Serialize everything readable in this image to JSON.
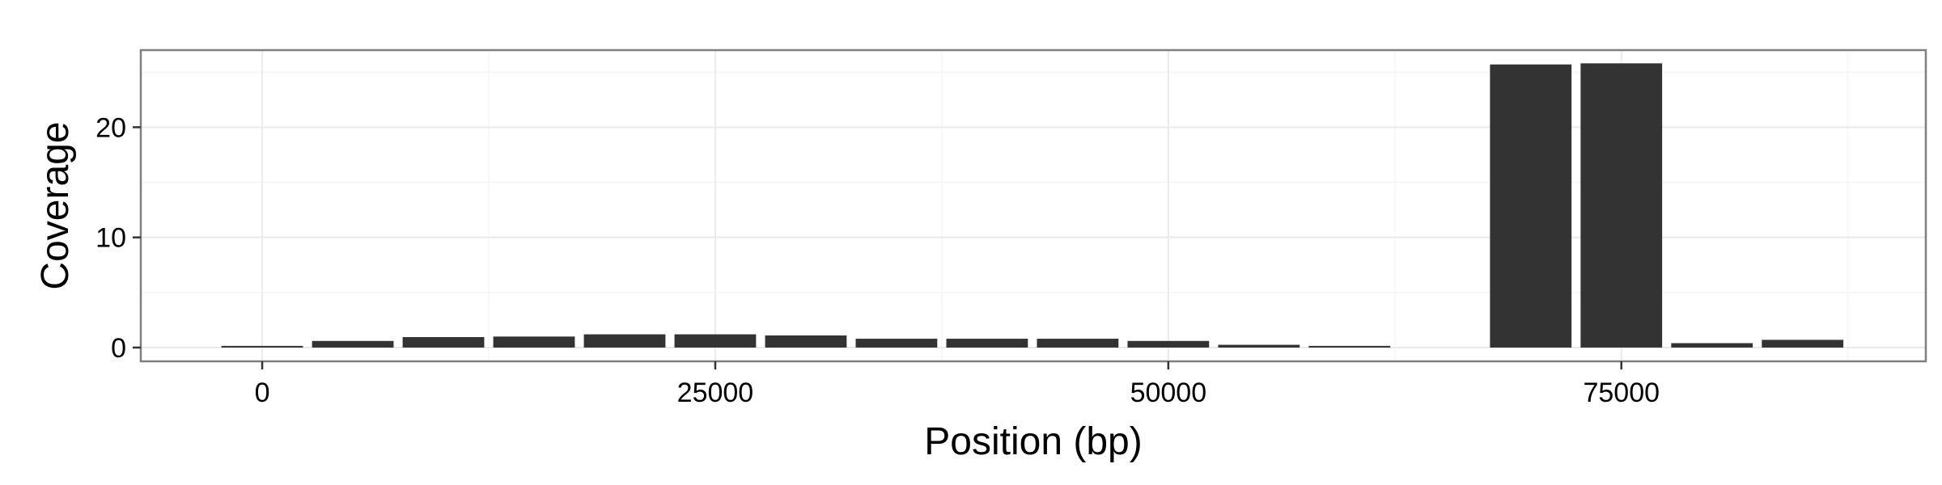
{
  "chart_data": {
    "type": "bar",
    "title": "",
    "xlabel": "Position (bp)",
    "ylabel": "Coverage",
    "xlim": [
      -6700,
      91800
    ],
    "ylim": [
      -1.25,
      27.0
    ],
    "x_ticks": [
      0,
      25000,
      50000,
      75000
    ],
    "x_tick_labels": [
      "0",
      "25000",
      "50000",
      "75000"
    ],
    "y_ticks": [
      0,
      10,
      20
    ],
    "y_tick_labels": [
      "0",
      "10",
      "20"
    ],
    "bin_width": 5000,
    "bar_width": 4500,
    "x": [
      0,
      5000,
      10000,
      15000,
      20000,
      25000,
      30000,
      35000,
      40000,
      45000,
      50000,
      55000,
      60000,
      65000,
      70000,
      75000,
      80000,
      85000
    ],
    "values": [
      0.15,
      0.6,
      0.95,
      1.0,
      1.2,
      1.2,
      1.1,
      0.8,
      0.8,
      0.8,
      0.6,
      0.25,
      0.15,
      0,
      25.7,
      25.8,
      0.4,
      0.7
    ],
    "grid": true,
    "legend": "none",
    "colors": {
      "bar": "#333333",
      "panel_border": "#7f7f7f",
      "grid_major": "#ebebeb",
      "grid_minor": "#f5f5f5",
      "axis_tick": "#333333"
    }
  }
}
